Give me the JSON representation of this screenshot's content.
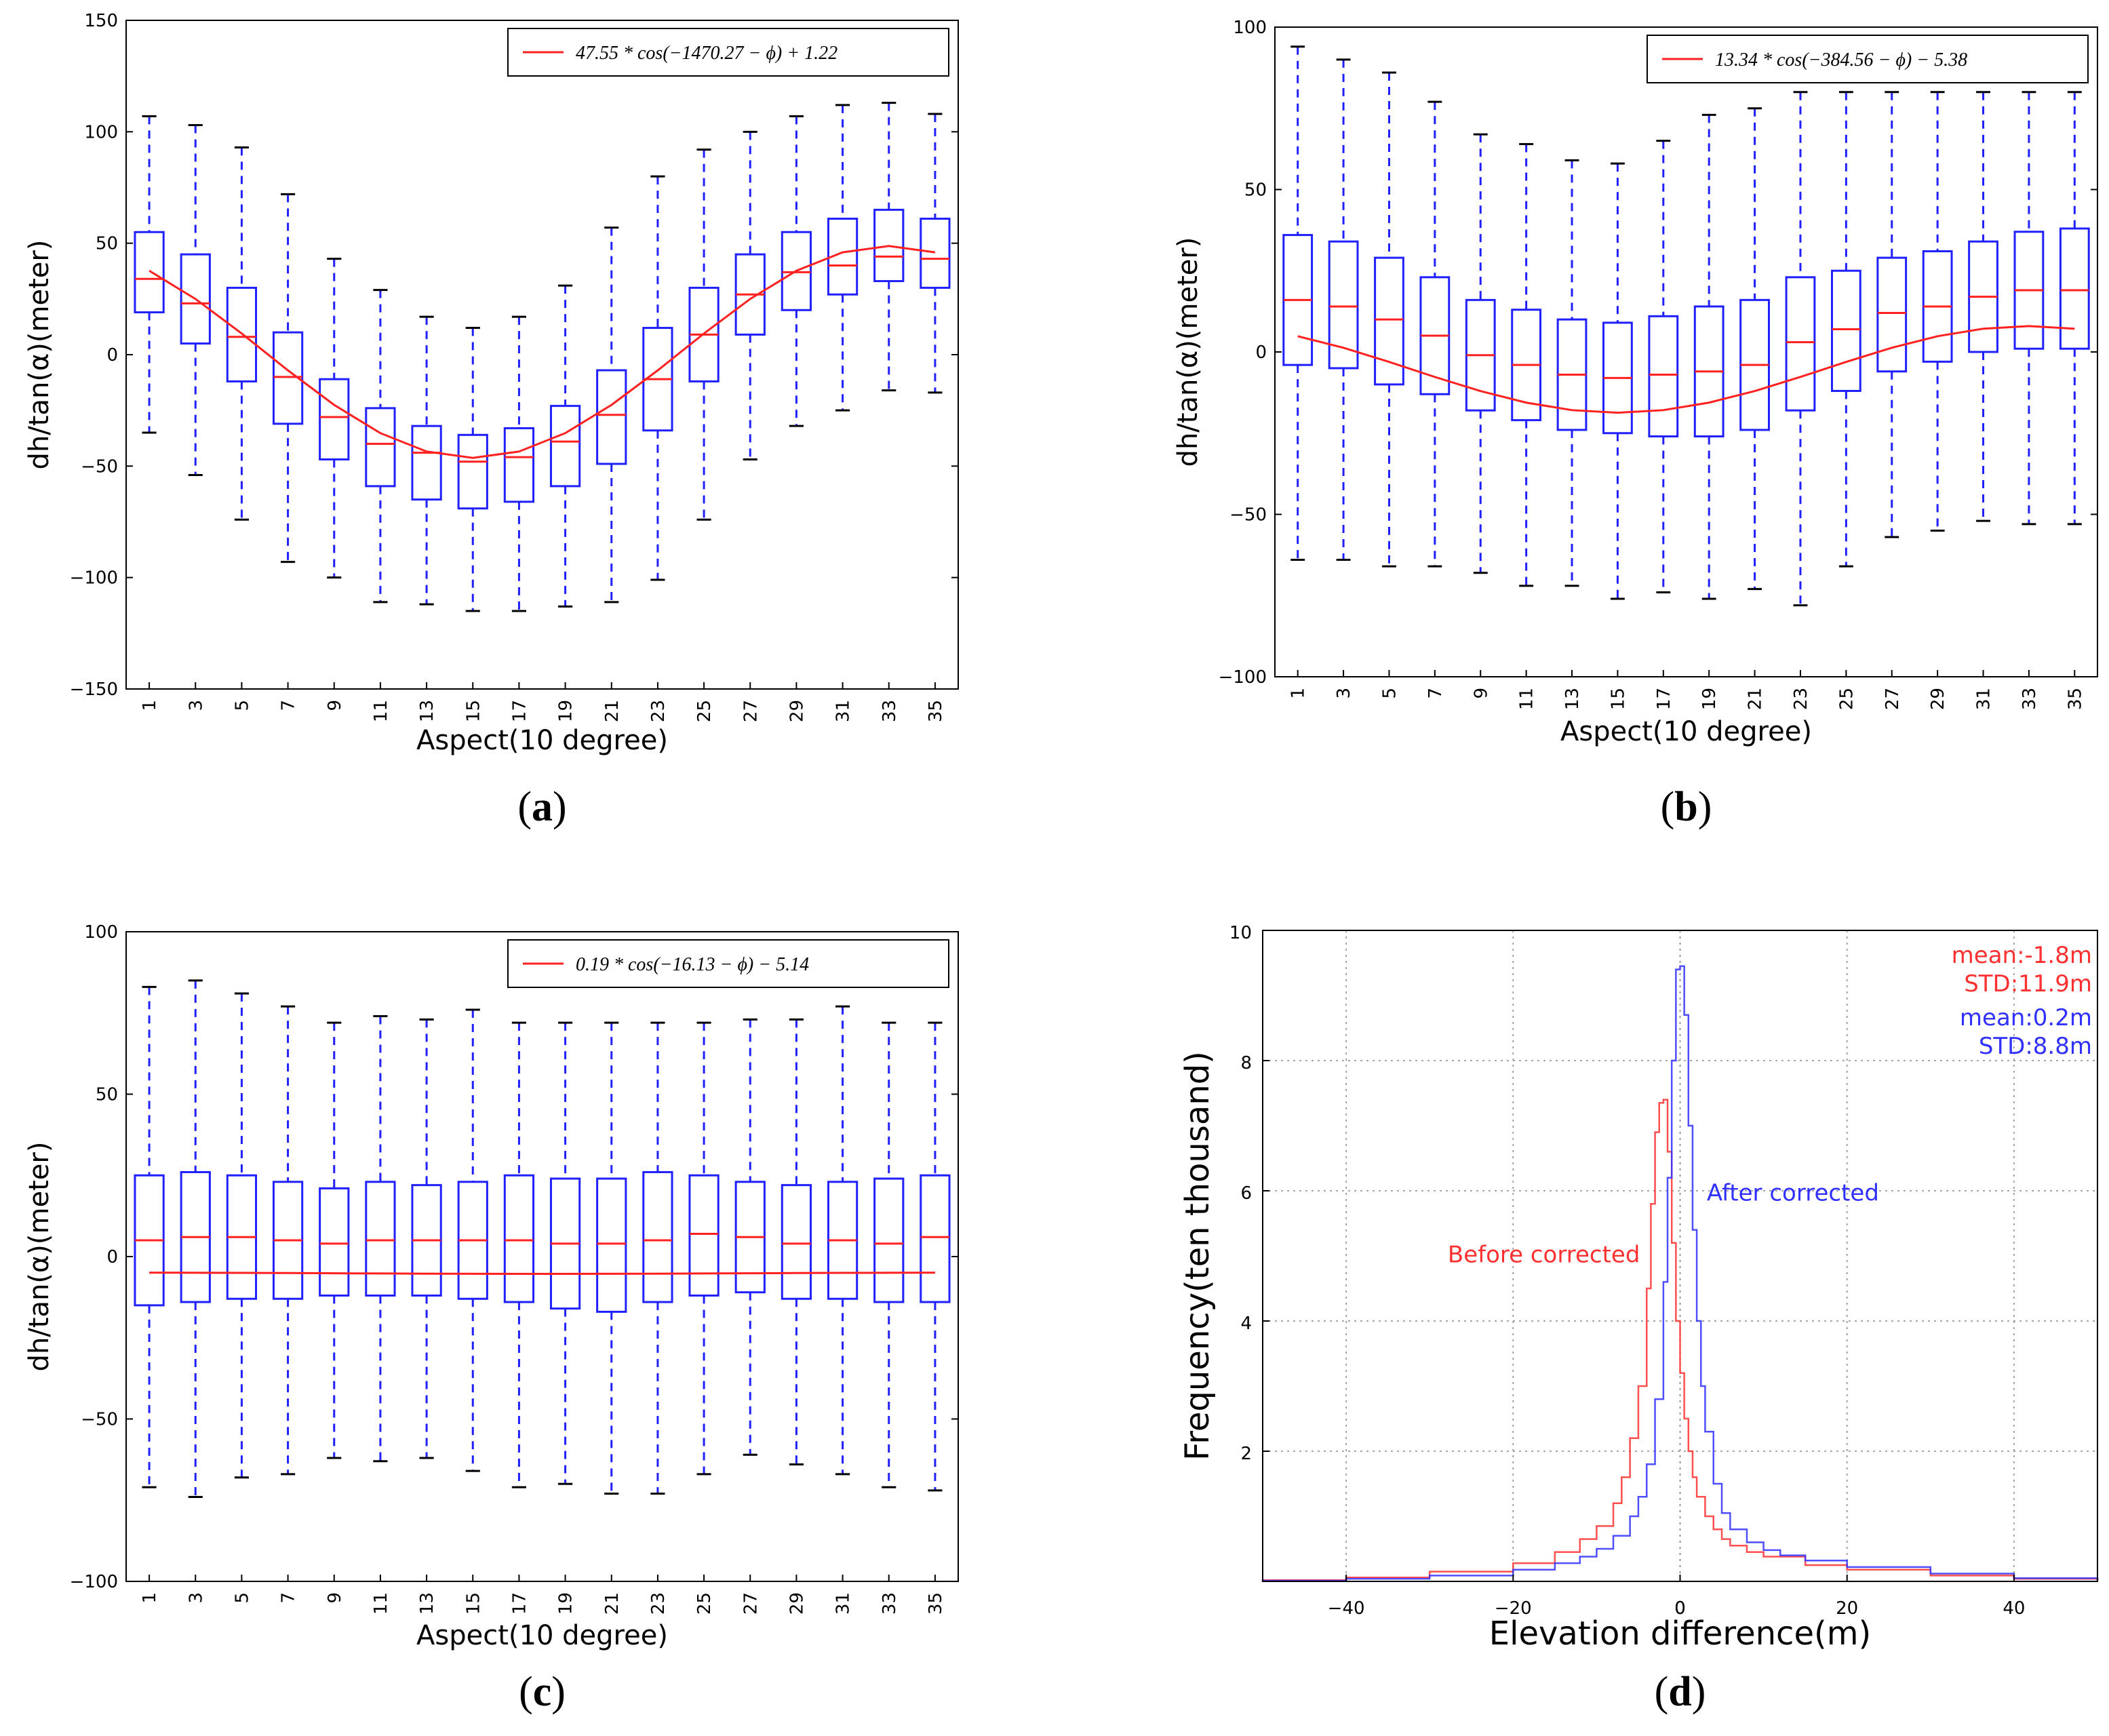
{
  "figure": {
    "panels": [
      "a",
      "b",
      "c",
      "d"
    ]
  },
  "chart_data": [
    {
      "id": "a",
      "type": "box",
      "panel_label": "a",
      "xlabel": "Aspect(10 degree)",
      "ylabel": "dh/tan(α)(meter)",
      "ylim": [
        -150,
        150
      ],
      "yticks": [
        -150,
        -100,
        -50,
        0,
        50,
        100,
        150
      ],
      "categories": [
        1,
        3,
        5,
        7,
        9,
        11,
        13,
        15,
        17,
        19,
        21,
        23,
        25,
        27,
        29,
        31,
        33,
        35
      ],
      "boxes": [
        {
          "whislo": -35,
          "q1": 19,
          "med": 34,
          "q3": 55,
          "whishi": 107
        },
        {
          "whislo": -54,
          "q1": 5,
          "med": 23,
          "q3": 45,
          "whishi": 103
        },
        {
          "whislo": -74,
          "q1": -12,
          "med": 8,
          "q3": 30,
          "whishi": 93
        },
        {
          "whislo": -93,
          "q1": -31,
          "med": -10,
          "q3": 10,
          "whishi": 72
        },
        {
          "whislo": -100,
          "q1": -47,
          "med": -28,
          "q3": -11,
          "whishi": 43
        },
        {
          "whislo": -111,
          "q1": -59,
          "med": -40,
          "q3": -24,
          "whishi": 29
        },
        {
          "whislo": -112,
          "q1": -65,
          "med": -44,
          "q3": -32,
          "whishi": 17
        },
        {
          "whislo": -115,
          "q1": -69,
          "med": -48,
          "q3": -36,
          "whishi": 12
        },
        {
          "whislo": -115,
          "q1": -66,
          "med": -46,
          "q3": -33,
          "whishi": 17
        },
        {
          "whislo": -113,
          "q1": -59,
          "med": -39,
          "q3": -23,
          "whishi": 31
        },
        {
          "whislo": -111,
          "q1": -49,
          "med": -27,
          "q3": -7,
          "whishi": 57
        },
        {
          "whislo": -101,
          "q1": -34,
          "med": -11,
          "q3": 12,
          "whishi": 80
        },
        {
          "whislo": -74,
          "q1": -12,
          "med": 9,
          "q3": 30,
          "whishi": 92
        },
        {
          "whislo": -47,
          "q1": 9,
          "med": 27,
          "q3": 45,
          "whishi": 100
        },
        {
          "whislo": -32,
          "q1": 20,
          "med": 37,
          "q3": 55,
          "whishi": 107
        },
        {
          "whislo": -25,
          "q1": 27,
          "med": 40,
          "q3": 61,
          "whishi": 112
        },
        {
          "whislo": -16,
          "q1": 33,
          "med": 44,
          "q3": 65,
          "whishi": 113
        },
        {
          "whislo": -17,
          "q1": 30,
          "med": 43,
          "q3": 61,
          "whishi": 108
        }
      ],
      "fit": {
        "amplitude": 47.55,
        "phase": -1470.27,
        "offset": 1.22,
        "legend": "47.55 * cos(−1470.27 − ϕ) + 1.22"
      }
    },
    {
      "id": "b",
      "type": "box",
      "panel_label": "b",
      "xlabel": "Aspect(10 degree)",
      "ylabel": "dh/tan(α)(meter)",
      "ylim": [
        -100,
        100
      ],
      "yticks": [
        -100,
        -50,
        0,
        50,
        100
      ],
      "categories": [
        1,
        3,
        5,
        7,
        9,
        11,
        13,
        15,
        17,
        19,
        21,
        23,
        25,
        27,
        29,
        31,
        33,
        35
      ],
      "boxes": [
        {
          "whislo": -64,
          "q1": -4,
          "med": 16,
          "q3": 36,
          "whishi": 94
        },
        {
          "whislo": -64,
          "q1": -5,
          "med": 14,
          "q3": 34,
          "whishi": 90
        },
        {
          "whislo": -66,
          "q1": -10,
          "med": 10,
          "q3": 29,
          "whishi": 86
        },
        {
          "whislo": -66,
          "q1": -13,
          "med": 5,
          "q3": 23,
          "whishi": 77
        },
        {
          "whislo": -68,
          "q1": -18,
          "med": -1,
          "q3": 16,
          "whishi": 67
        },
        {
          "whislo": -72,
          "q1": -21,
          "med": -4,
          "q3": 13,
          "whishi": 64
        },
        {
          "whislo": -72,
          "q1": -24,
          "med": -7,
          "q3": 10,
          "whishi": 59
        },
        {
          "whislo": -76,
          "q1": -25,
          "med": -8,
          "q3": 9,
          "whishi": 58
        },
        {
          "whislo": -74,
          "q1": -26,
          "med": -7,
          "q3": 11,
          "whishi": 65
        },
        {
          "whislo": -76,
          "q1": -26,
          "med": -6,
          "q3": 14,
          "whishi": 73
        },
        {
          "whislo": -73,
          "q1": -24,
          "med": -4,
          "q3": 16,
          "whishi": 75
        },
        {
          "whislo": -78,
          "q1": -18,
          "med": 3,
          "q3": 23,
          "whishi": 80
        },
        {
          "whislo": -66,
          "q1": -12,
          "med": 7,
          "q3": 25,
          "whishi": 80
        },
        {
          "whislo": -57,
          "q1": -6,
          "med": 12,
          "q3": 29,
          "whishi": 80
        },
        {
          "whislo": -55,
          "q1": -3,
          "med": 14,
          "q3": 31,
          "whishi": 80
        },
        {
          "whislo": -52,
          "q1": 0,
          "med": 17,
          "q3": 34,
          "whishi": 80
        },
        {
          "whislo": -53,
          "q1": 1,
          "med": 19,
          "q3": 37,
          "whishi": 80
        },
        {
          "whislo": -53,
          "q1": 1,
          "med": 19,
          "q3": 38,
          "whishi": 80
        }
      ],
      "fit": {
        "amplitude": 13.34,
        "phase": -384.56,
        "offset": -5.38,
        "legend": "13.34 * cos(−384.56 − ϕ) − 5.38"
      }
    },
    {
      "id": "c",
      "type": "box",
      "panel_label": "c",
      "xlabel": "Aspect(10 degree)",
      "ylabel": "dh/tan(α)(meter)",
      "ylim": [
        -100,
        100
      ],
      "yticks": [
        -100,
        -50,
        0,
        50,
        100
      ],
      "categories": [
        1,
        3,
        5,
        7,
        9,
        11,
        13,
        15,
        17,
        19,
        21,
        23,
        25,
        27,
        29,
        31,
        33,
        35
      ],
      "boxes": [
        {
          "whislo": -71,
          "q1": -15,
          "med": 5,
          "q3": 25,
          "whishi": 83
        },
        {
          "whislo": -74,
          "q1": -14,
          "med": 6,
          "q3": 26,
          "whishi": 85
        },
        {
          "whislo": -68,
          "q1": -13,
          "med": 6,
          "q3": 25,
          "whishi": 81
        },
        {
          "whislo": -67,
          "q1": -13,
          "med": 5,
          "q3": 23,
          "whishi": 77
        },
        {
          "whislo": -62,
          "q1": -12,
          "med": 4,
          "q3": 21,
          "whishi": 72
        },
        {
          "whislo": -63,
          "q1": -12,
          "med": 5,
          "q3": 23,
          "whishi": 74
        },
        {
          "whislo": -62,
          "q1": -12,
          "med": 5,
          "q3": 22,
          "whishi": 73
        },
        {
          "whislo": -66,
          "q1": -13,
          "med": 5,
          "q3": 23,
          "whishi": 76
        },
        {
          "whislo": -71,
          "q1": -14,
          "med": 5,
          "q3": 25,
          "whishi": 72
        },
        {
          "whislo": -70,
          "q1": -16,
          "med": 4,
          "q3": 24,
          "whishi": 72
        },
        {
          "whislo": -73,
          "q1": -17,
          "med": 4,
          "q3": 24,
          "whishi": 72
        },
        {
          "whislo": -73,
          "q1": -14,
          "med": 5,
          "q3": 26,
          "whishi": 72
        },
        {
          "whislo": -67,
          "q1": -12,
          "med": 7,
          "q3": 25,
          "whishi": 72
        },
        {
          "whislo": -61,
          "q1": -11,
          "med": 6,
          "q3": 23,
          "whishi": 73
        },
        {
          "whislo": -64,
          "q1": -13,
          "med": 4,
          "q3": 22,
          "whishi": 73
        },
        {
          "whislo": -67,
          "q1": -13,
          "med": 5,
          "q3": 23,
          "whishi": 77
        },
        {
          "whislo": -71,
          "q1": -14,
          "med": 4,
          "q3": 24,
          "whishi": 72
        },
        {
          "whislo": -72,
          "q1": -14,
          "med": 6,
          "q3": 25,
          "whishi": 72
        }
      ],
      "fit": {
        "amplitude": 0.19,
        "phase": -16.13,
        "offset": -5.14,
        "legend": "0.19 * cos(−16.13 − ϕ) − 5.14"
      }
    },
    {
      "id": "d",
      "type": "histogram-step",
      "panel_label": "d",
      "xlabel": "Elevation difference(m)",
      "ylabel": "Frequency(ten thousand)",
      "xlim": [
        -50,
        50
      ],
      "ylim": [
        0,
        10
      ],
      "xticks": [
        -40,
        -20,
        0,
        20,
        40
      ],
      "yticks": [
        2,
        4,
        6,
        8,
        10
      ],
      "grid": true,
      "series": [
        {
          "name": "Before corrected",
          "color": "#ff3030",
          "mean": -1.8,
          "std": 11.9,
          "peak": 7.4,
          "x": [
            -50,
            -40,
            -30,
            -20,
            -15,
            -12,
            -10,
            -8,
            -7,
            -6,
            -5,
            -4,
            -3.5,
            -3,
            -2.5,
            -2,
            -1.5,
            -1,
            -0.5,
            0,
            0.5,
            1,
            1.5,
            2,
            3,
            4,
            5,
            6,
            8,
            10,
            15,
            20,
            30,
            40,
            50
          ],
          "y": [
            0.02,
            0.06,
            0.15,
            0.28,
            0.45,
            0.65,
            0.85,
            1.2,
            1.6,
            2.2,
            3.0,
            4.5,
            5.8,
            6.9,
            7.35,
            7.4,
            6.6,
            5.2,
            4.0,
            3.2,
            2.5,
            2.0,
            1.6,
            1.3,
            1.0,
            0.8,
            0.65,
            0.55,
            0.45,
            0.38,
            0.25,
            0.18,
            0.09,
            0.04,
            0.01
          ]
        },
        {
          "name": "After corrected",
          "color": "#3030ff",
          "mean": 0.2,
          "std": 8.8,
          "peak": 9.45,
          "x": [
            -50,
            -40,
            -30,
            -20,
            -15,
            -12,
            -10,
            -8,
            -6,
            -5,
            -4,
            -3,
            -2,
            -1.5,
            -1,
            -0.5,
            0,
            0.5,
            1,
            1.5,
            2,
            2.5,
            3,
            4,
            5,
            6,
            8,
            10,
            12,
            15,
            20,
            30,
            40,
            50
          ],
          "y": [
            0.01,
            0.04,
            0.09,
            0.18,
            0.28,
            0.38,
            0.5,
            0.7,
            1.0,
            1.3,
            1.8,
            2.8,
            4.6,
            6.2,
            8.0,
            9.4,
            9.45,
            8.7,
            7.0,
            5.4,
            4.0,
            3.0,
            2.3,
            1.5,
            1.05,
            0.8,
            0.6,
            0.48,
            0.4,
            0.32,
            0.22,
            0.12,
            0.05,
            0.02
          ]
        }
      ],
      "annotations": [
        {
          "text": "mean:-1.8m",
          "color": "#ff3030"
        },
        {
          "text": "STD:11.9m",
          "color": "#ff3030"
        },
        {
          "text": "mean:0.2m",
          "color": "#3030ff"
        },
        {
          "text": "STD:8.8m",
          "color": "#3030ff"
        },
        {
          "text": "After corrected",
          "color": "#3030ff"
        },
        {
          "text": "Before corrected",
          "color": "#ff3030"
        }
      ]
    }
  ]
}
